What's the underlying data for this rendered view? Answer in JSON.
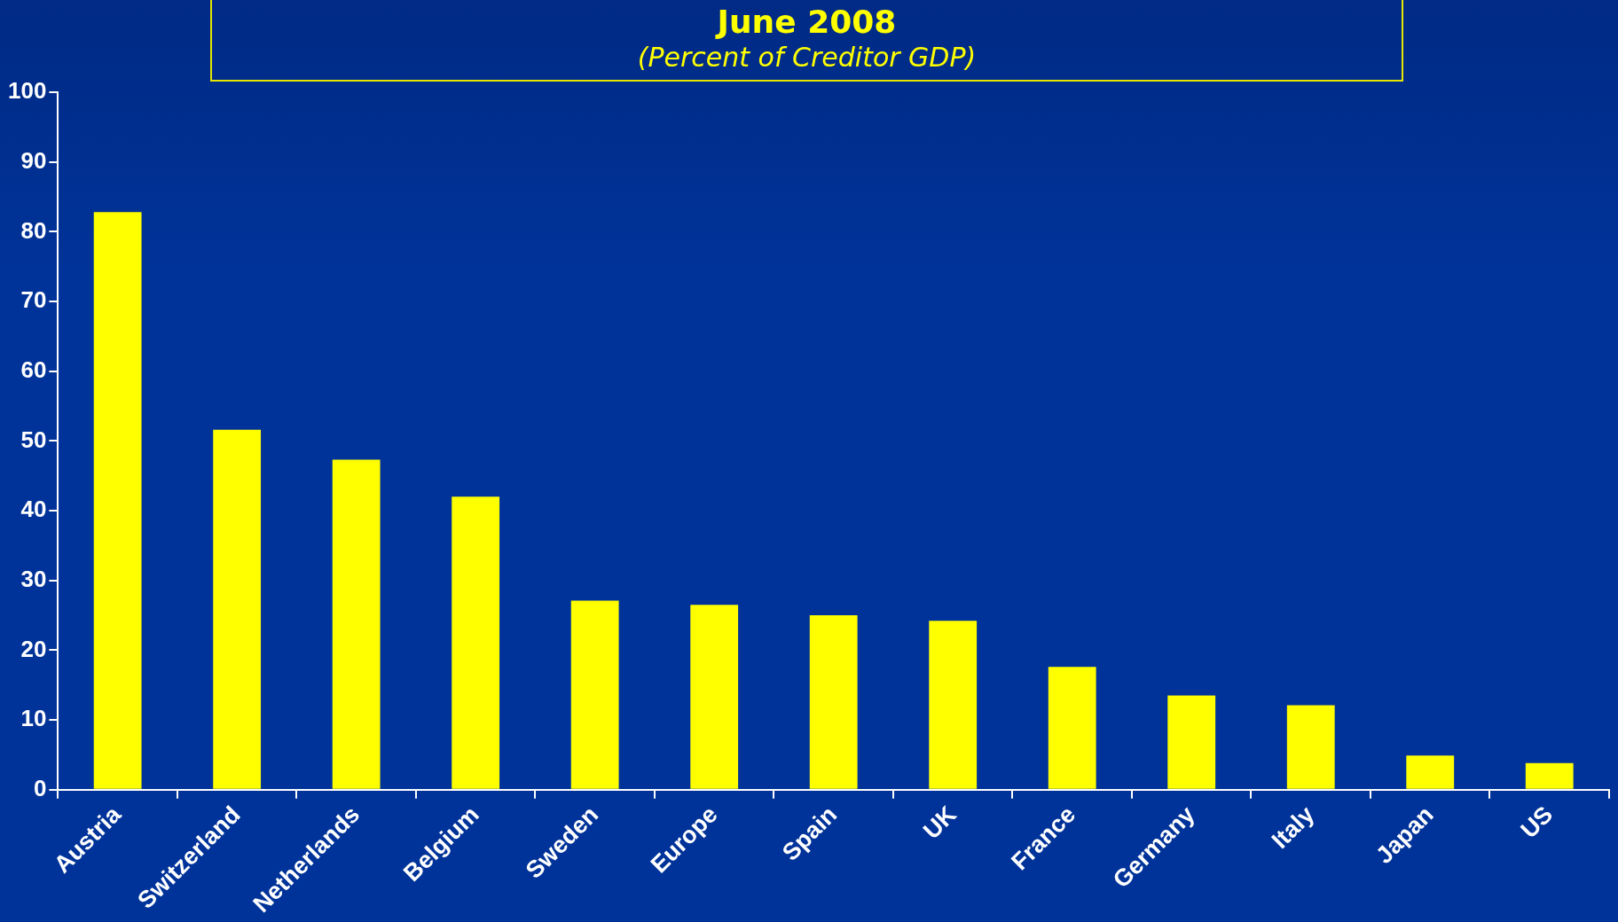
{
  "chart_data": {
    "type": "bar",
    "title": "June 2008",
    "subtitle": "(Percent of Creditor GDP)",
    "categories": [
      "Austria",
      "Switzerland",
      "Netherlands",
      "Belgium",
      "Sweden",
      "Europe",
      "Spain",
      "UK",
      "France",
      "Germany",
      "Italy",
      "Japan",
      "US"
    ],
    "values": [
      82.8,
      51.6,
      47.3,
      42.0,
      27.1,
      26.5,
      25.0,
      24.2,
      17.6,
      13.5,
      12.1,
      4.9,
      3.8
    ],
    "color": "#ffff00",
    "ylim": [
      0,
      100
    ],
    "yticks": [
      0,
      10,
      20,
      30,
      40,
      50,
      60,
      70,
      80,
      90,
      100
    ]
  }
}
